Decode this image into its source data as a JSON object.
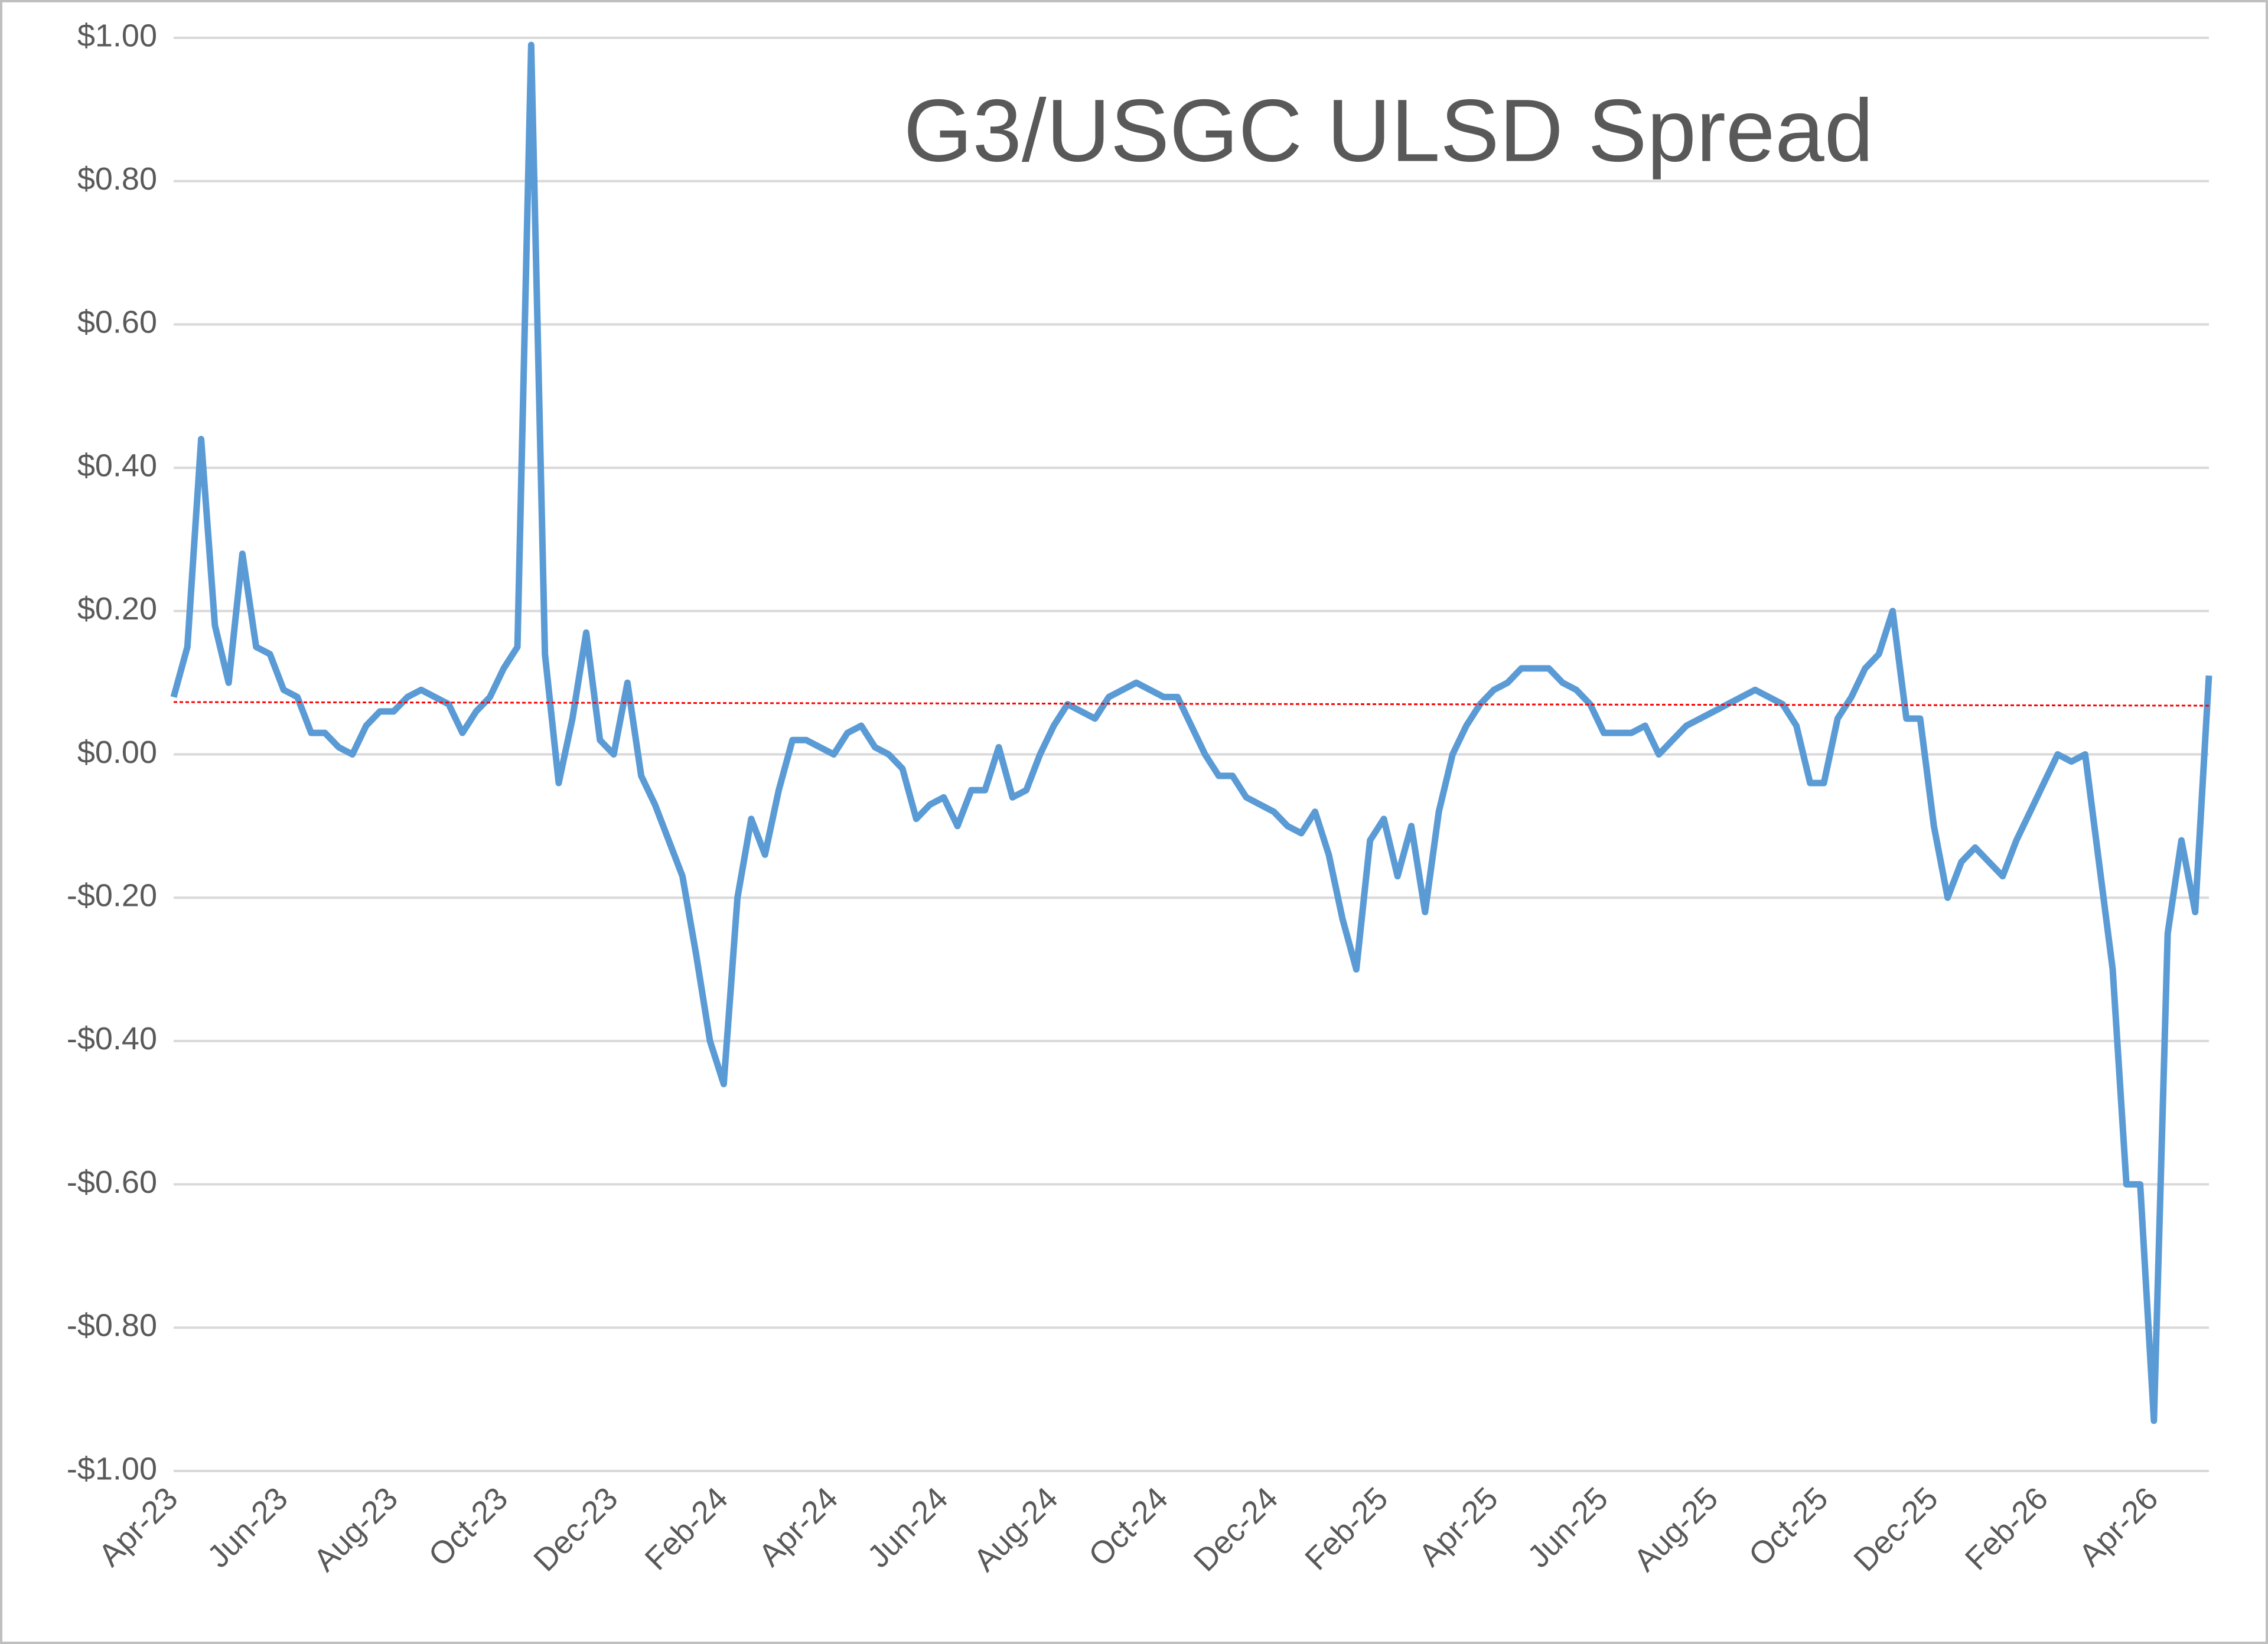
{
  "chart_data": {
    "type": "line",
    "title": "G3/USGC ULSD Spread",
    "categories": [
      "Apr-23",
      null,
      null,
      null,
      null,
      null,
      null,
      null,
      "Jun-23",
      null,
      null,
      null,
      null,
      null,
      null,
      null,
      "Aug-23",
      null,
      null,
      null,
      null,
      null,
      null,
      null,
      "Oct-23",
      null,
      null,
      null,
      null,
      null,
      null,
      null,
      "Dec-23",
      null,
      null,
      null,
      null,
      null,
      null,
      null,
      "Feb-24",
      null,
      null,
      null,
      null,
      null,
      null,
      null,
      "Apr-24",
      null,
      null,
      null,
      null,
      null,
      null,
      null,
      "Jun-24",
      null,
      null,
      null,
      null,
      null,
      null,
      null,
      "Aug-24",
      null,
      null,
      null,
      null,
      null,
      null,
      null,
      "Oct-24",
      null,
      null,
      null,
      null,
      null,
      null,
      null,
      "Dec-24",
      null,
      null,
      null,
      null,
      null,
      null,
      null,
      "Feb-25",
      null,
      null,
      null,
      null,
      null,
      null,
      null,
      "Apr-25",
      null,
      null,
      null,
      null,
      null,
      null,
      null,
      "Jun-25",
      null,
      null,
      null,
      null,
      null,
      null,
      null,
      "Aug-25",
      null,
      null,
      null,
      null,
      null,
      null,
      null,
      "Oct-25",
      null,
      null,
      null,
      null,
      null,
      null,
      null,
      "Dec-25",
      null,
      null,
      null,
      null,
      null,
      null,
      null,
      "Feb-26",
      null,
      null,
      null,
      null,
      null,
      null,
      null,
      "Apr-26",
      null,
      null,
      null,
      null
    ],
    "series": [
      {
        "color": "#5b9bd5",
        "values": [
          0.08,
          0.15,
          0.44,
          0.18,
          0.1,
          0.28,
          0.15,
          0.14,
          0.09,
          0.08,
          0.03,
          0.03,
          0.01,
          0.0,
          0.04,
          0.06,
          0.06,
          0.08,
          0.09,
          0.08,
          0.07,
          0.03,
          0.06,
          0.08,
          0.12,
          0.15,
          0.99,
          0.14,
          -0.04,
          0.05,
          0.17,
          0.02,
          0.0,
          0.1,
          -0.03,
          -0.07,
          -0.12,
          -0.17,
          -0.28,
          -0.4,
          -0.46,
          -0.2,
          -0.09,
          -0.14,
          -0.05,
          0.02,
          0.02,
          0.01,
          0.0,
          0.03,
          0.04,
          0.01,
          0.0,
          -0.02,
          -0.09,
          -0.07,
          -0.06,
          -0.1,
          -0.05,
          -0.05,
          0.01,
          -0.06,
          -0.05,
          0.0,
          0.04,
          0.07,
          0.06,
          0.05,
          0.08,
          0.09,
          0.1,
          0.09,
          0.08,
          0.08,
          0.04,
          0.0,
          -0.03,
          -0.03,
          -0.06,
          -0.07,
          -0.08,
          -0.1,
          -0.11,
          -0.08,
          -0.14,
          -0.23,
          -0.3,
          -0.12,
          -0.09,
          -0.17,
          -0.1,
          -0.22,
          -0.08,
          0.0,
          0.04,
          0.07,
          0.09,
          0.1,
          0.12,
          0.12,
          0.12,
          0.1,
          0.09,
          0.07,
          0.03,
          0.03,
          0.03,
          0.04,
          0.0,
          0.02,
          0.04,
          0.05,
          0.06,
          0.07,
          0.08,
          0.09,
          0.08,
          0.07,
          0.04,
          -0.04,
          -0.04,
          0.05,
          0.08,
          0.12,
          0.14,
          0.2,
          0.05,
          0.05,
          -0.1,
          -0.2,
          -0.15,
          -0.13,
          -0.15,
          -0.17,
          -0.12,
          -0.08,
          -0.04,
          0.0,
          -0.01,
          0.0,
          -0.15,
          -0.3,
          -0.6,
          -0.6,
          -0.93,
          -0.25,
          -0.12,
          -0.22,
          0.11
        ]
      }
    ],
    "trendline": {
      "color": "#ff0000",
      "values": [
        0.073,
        0.068
      ]
    },
    "ylim": [
      -1,
      1
    ],
    "yticks": [
      {
        "value": -1,
        "label": "-$1.00"
      },
      {
        "value": -0.8,
        "label": "-$0.80"
      },
      {
        "value": -0.6,
        "label": "-$0.60"
      },
      {
        "value": -0.4,
        "label": "-$0.40"
      },
      {
        "value": -0.2,
        "label": "-$0.20"
      },
      {
        "value": 0,
        "label": "$0.00"
      },
      {
        "value": 0.2,
        "label": "$0.20"
      },
      {
        "value": 0.4,
        "label": "$0.40"
      },
      {
        "value": 0.6,
        "label": "$0.60"
      },
      {
        "value": 0.8,
        "label": "$0.80"
      },
      {
        "value": 1,
        "label": "$1.00"
      }
    ],
    "grid": true
  }
}
